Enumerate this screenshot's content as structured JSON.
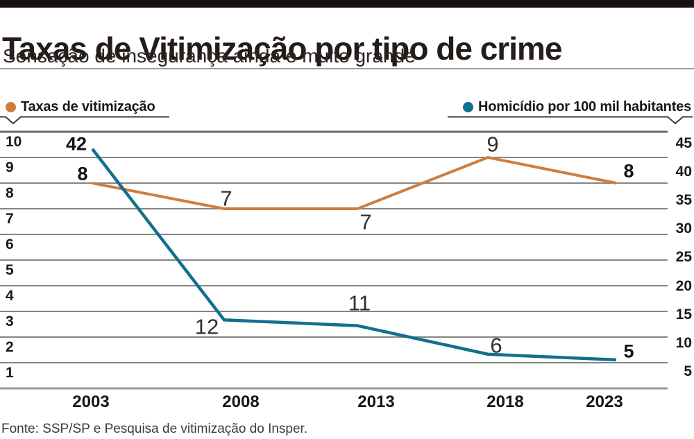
{
  "header": {
    "title": "Taxas de Vitimização por tipo de crime",
    "subtitle": "Sensação de insegurança ainda é muito grande"
  },
  "legend": {
    "left": {
      "label": "Taxas de vitimização",
      "color": "#cd7e3e",
      "icon": "orange-dot"
    },
    "right": {
      "label": "Homicídio por 100 mil habitantes",
      "color": "#136f8e",
      "icon": "teal-dot"
    }
  },
  "chart_data": {
    "type": "line",
    "title": "Taxas de Vitimização por tipo de crime",
    "subtitle": "Sensação de insegurança ainda é muito grande",
    "categories": [
      "2003",
      "2008",
      "2013",
      "2018",
      "2023"
    ],
    "series": [
      {
        "name": "Taxas de vitimização",
        "axis": "left",
        "color": "#cd7e3e",
        "values": [
          8,
          7,
          7,
          9,
          8
        ]
      },
      {
        "name": "Homicídio por 100 mil habitantes",
        "axis": "right",
        "color": "#136f8e",
        "values": [
          42,
          12,
          11,
          6,
          5
        ]
      }
    ],
    "left_axis": {
      "ticks": [
        10,
        9,
        8,
        7,
        6,
        5,
        4,
        3,
        2,
        1
      ],
      "range": [
        0,
        10
      ]
    },
    "right_axis": {
      "ticks": [
        45,
        40,
        35,
        30,
        25,
        20,
        15,
        10,
        5
      ],
      "range": [
        0,
        45
      ]
    },
    "grid": "horizontal",
    "legend_position": "top"
  },
  "footer": {
    "source": "Fonte: SSP/SP e Pesquisa de vitimização do Insper."
  },
  "colors": {
    "orange": "#cd7e3e",
    "teal": "#136f8e",
    "grid": "#858585",
    "grid_top": "#6b6b6b",
    "grid_bottom": "#9a9a9a",
    "topbar": "#181114",
    "underline": "#3d3d3d"
  }
}
